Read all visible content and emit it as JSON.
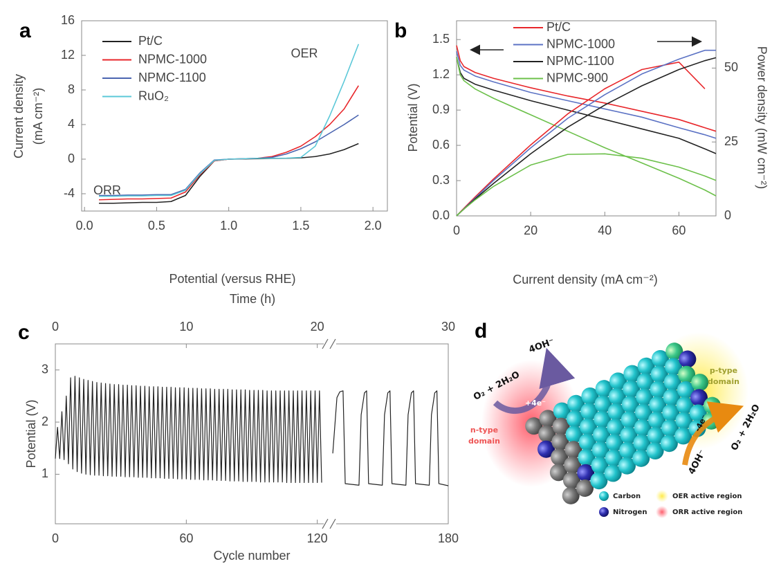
{
  "chart_data": [
    {
      "type": "line",
      "panel_label": "a",
      "xlabel": "Potential (versus RHE)",
      "ylabel": [
        "Current density",
        "(mA cm⁻²)"
      ],
      "annotations": [
        "ORR",
        "OER"
      ],
      "x": [
        0.1,
        0.2,
        0.3,
        0.4,
        0.5,
        0.6,
        0.7,
        0.8,
        0.9,
        1.0,
        1.1,
        1.2,
        1.3,
        1.4,
        1.5,
        1.6,
        1.7,
        1.8,
        1.9
      ],
      "series": [
        {
          "name": "Pt/C",
          "color": "#222222",
          "values": [
            -5.1,
            -5.1,
            -5.05,
            -5.0,
            -5.0,
            -4.9,
            -4.2,
            -2.0,
            -0.2,
            0,
            0.02,
            0.05,
            0.08,
            0.1,
            0.15,
            0.3,
            0.6,
            1.1,
            1.8
          ]
        },
        {
          "name": "NPMC-1000",
          "color": "#e8262a",
          "values": [
            -4.7,
            -4.65,
            -4.6,
            -4.6,
            -4.55,
            -4.5,
            -3.8,
            -1.8,
            -0.2,
            0,
            0.05,
            0.1,
            0.3,
            0.8,
            1.5,
            2.6,
            4.0,
            5.8,
            8.5
          ]
        },
        {
          "name": "NPMC-1100",
          "color": "#4a64b0",
          "values": [
            -4.2,
            -4.2,
            -4.15,
            -4.15,
            -4.1,
            -4.1,
            -3.5,
            -1.6,
            -0.1,
            0,
            0.05,
            0.1,
            0.2,
            0.6,
            1.2,
            2.0,
            3.0,
            4.0,
            5.1
          ]
        },
        {
          "name": "RuO₂",
          "color": "#5bc8d8",
          "values": [
            -4.3,
            -4.3,
            -4.25,
            -4.25,
            -4.2,
            -4.2,
            -3.6,
            -1.7,
            -0.15,
            0,
            0.05,
            0.1,
            0.1,
            0.12,
            0.2,
            1.5,
            5.0,
            9.0,
            13.3
          ]
        }
      ],
      "xlim": [
        -0.02,
        2.1
      ],
      "xticks": [
        {
          "value": 0,
          "label": "0.0"
        },
        0.5,
        {
          "value": 1,
          "label": "1.0"
        },
        1.5,
        {
          "value": 2,
          "label": "2.0"
        }
      ],
      "ylim": [
        -6,
        16
      ],
      "yticks": [
        -4,
        0,
        4,
        8,
        12,
        16
      ]
    },
    {
      "type": "line",
      "panel_label": "b",
      "xlabel": "Current density (mA cm⁻²)",
      "ylabel": "Potential (V)",
      "y2label": "Power density (mW cm⁻²)",
      "x": [
        0,
        1,
        2,
        5,
        10,
        20,
        30,
        40,
        50,
        60,
        67,
        70
      ],
      "series": [
        {
          "name": "Pt/C",
          "color": "#e8262a",
          "values": [
            1.45,
            1.32,
            1.27,
            1.22,
            1.17,
            1.09,
            1.02,
            0.96,
            0.89,
            0.82,
            0.75,
            0.72
          ]
        },
        {
          "name": "NPMC-1000",
          "color": "#5b72c4",
          "values": [
            1.4,
            1.28,
            1.24,
            1.19,
            1.14,
            1.05,
            0.98,
            0.91,
            0.84,
            0.75,
            0.69,
            0.66
          ]
        },
        {
          "name": "NPMC-1100",
          "color": "#222222",
          "values": [
            1.35,
            1.22,
            1.17,
            1.12,
            1.07,
            0.98,
            0.9,
            0.82,
            0.74,
            0.66,
            0.57,
            0.53
          ]
        },
        {
          "name": "NPMC-900",
          "color": "#6cc04a",
          "values": [
            1.35,
            1.2,
            1.15,
            1.08,
            1.0,
            0.86,
            0.72,
            0.58,
            0.45,
            0.32,
            0.22,
            0.17
          ]
        },
        {
          "axis": "y2",
          "color": "#e8262a",
          "values": [
            0,
            1.3,
            2.6,
            6.4,
            12.5,
            24,
            34.5,
            43,
            49.5,
            52,
            43,
            null
          ]
        },
        {
          "axis": "y2",
          "color": "#5b72c4",
          "values": [
            0,
            1.2,
            2.4,
            6,
            12,
            23,
            33,
            41,
            48,
            53,
            56,
            56
          ]
        },
        {
          "axis": "y2",
          "color": "#222222",
          "values": [
            0,
            1.2,
            2.3,
            5.7,
            11,
            21,
            30,
            37.5,
            44,
            49.5,
            52.5,
            53.5
          ]
        },
        {
          "axis": "y2",
          "color": "#6cc04a",
          "values": [
            0,
            1.2,
            2.3,
            5.4,
            10,
            17.2,
            20.8,
            21,
            19.5,
            16.5,
            13.5,
            12
          ]
        }
      ],
      "xlim": [
        0,
        70
      ],
      "xticks": [
        0,
        20,
        40,
        60
      ],
      "ylim": [
        0,
        1.66
      ],
      "yticks": [
        {
          "value": 0,
          "label": "0.0"
        },
        0.3,
        0.6,
        0.9,
        1.2,
        1.5
      ],
      "y2lim": [
        0,
        66
      ],
      "y2ticks": [
        0,
        25,
        50
      ]
    },
    {
      "type": "line",
      "panel_label": "c",
      "xlabel": "Cycle number",
      "ylabel": "Potential (V)",
      "x2label": "Time (h)",
      "x": [
        0,
        1,
        2,
        3,
        4,
        5,
        6,
        7,
        8,
        9,
        10,
        11,
        12,
        13,
        14,
        15,
        16,
        17,
        18,
        19,
        20,
        21,
        22,
        23,
        24,
        25,
        26,
        27,
        28,
        29,
        30,
        31,
        32,
        33,
        34,
        35,
        36,
        37,
        38,
        39,
        40,
        41,
        42,
        43,
        44,
        45,
        46,
        47,
        48,
        49,
        50,
        51,
        52,
        53,
        54,
        55,
        56,
        57,
        58,
        59,
        60,
        61,
        62,
        63,
        64,
        65,
        66,
        67,
        68,
        69,
        70,
        71,
        72,
        73,
        74,
        75,
        76,
        77,
        78,
        79,
        80,
        81,
        82,
        83,
        84,
        85,
        86,
        87,
        88,
        89,
        90,
        91,
        92,
        93,
        94,
        95,
        96,
        97,
        98,
        99,
        100,
        101,
        102,
        103,
        104,
        105,
        106,
        107,
        108,
        109,
        110,
        111,
        112,
        113,
        114,
        115,
        116,
        117,
        118,
        119,
        120,
        121,
        122,
        125,
        127.1,
        129,
        130.3,
        131.8,
        132.8,
        139.1,
        140.1,
        141.6,
        142.6,
        143.5,
        149.8,
        150.8,
        152.3,
        153.3,
        154.2,
        160.6,
        161.6,
        163.1,
        164.1,
        165,
        171.3,
        172.3,
        173.8,
        174.8,
        175.7,
        180
      ],
      "series": [
        {
          "color": "#222222",
          "values": [
            1.3,
            1.9,
            1.3,
            2.2,
            1.28,
            2.5,
            1.2,
            2.85,
            1.1,
            2.88,
            1.05,
            2.85,
            1.02,
            2.82,
            1.0,
            2.8,
            0.99,
            2.78,
            0.98,
            2.76,
            0.98,
            2.75,
            0.97,
            2.74,
            0.97,
            2.73,
            0.96,
            2.72,
            0.96,
            2.72,
            0.96,
            2.71,
            0.95,
            2.71,
            0.95,
            2.7,
            0.95,
            2.7,
            0.94,
            2.69,
            0.94,
            2.69,
            0.94,
            2.68,
            0.93,
            2.68,
            0.93,
            2.68,
            0.93,
            2.67,
            0.92,
            2.67,
            0.92,
            2.67,
            0.92,
            2.66,
            0.91,
            2.66,
            0.91,
            2.66,
            0.91,
            2.65,
            0.9,
            2.65,
            0.9,
            2.65,
            0.9,
            2.64,
            0.89,
            2.64,
            0.89,
            2.64,
            0.89,
            2.63,
            0.88,
            2.63,
            0.88,
            2.63,
            0.88,
            2.63,
            0.87,
            2.62,
            0.87,
            2.62,
            0.87,
            2.62,
            0.86,
            2.62,
            0.86,
            2.61,
            0.86,
            2.61,
            0.86,
            2.61,
            0.85,
            2.61,
            0.85,
            2.6,
            0.85,
            2.6,
            0.85,
            2.6,
            0.85,
            2.6,
            0.85,
            2.6,
            0.84,
            2.6,
            0.84,
            2.6,
            0.84,
            2.6,
            0.84,
            2.6,
            0.84,
            2.6,
            0.84,
            2.6,
            0.84,
            2.6,
            0.84,
            2.6,
            0.84,
            null,
            1.4,
            2.47,
            2.58,
            2.6,
            0.82,
            0.79,
            2.14,
            2.56,
            2.6,
            0.82,
            0.79,
            2.14,
            2.56,
            2.6,
            0.82,
            0.79,
            2.14,
            2.56,
            2.6,
            0.82,
            0.79,
            2.14,
            2.56,
            2.6,
            0.82,
            0.78
          ]
        }
      ],
      "xlim": [
        0,
        180
      ],
      "xticks": [
        0,
        60,
        120,
        180
      ],
      "x2lim": [
        0,
        30
      ],
      "x2ticks": [
        0,
        10,
        20,
        30
      ],
      "ylim": [
        0.05,
        3.5
      ],
      "yticks": [
        1,
        2,
        3
      ]
    }
  ],
  "panel_d": {
    "panel_label": "d",
    "labels": {
      "left_product": "4OH⁻",
      "left_reactant": "O₂ + 2H₂O",
      "left_electrons": "+4e⁻",
      "n_type": [
        "n-type",
        "domain"
      ],
      "p_type": [
        "p-type",
        "domain"
      ],
      "right_electrons": "-4e⁻",
      "right_reactant": "4OH⁻",
      "right_product": "O₂ + 2H₂O"
    },
    "legend": [
      "Carbon",
      "Nitrogen",
      "OER active region",
      "ORR active region"
    ]
  }
}
